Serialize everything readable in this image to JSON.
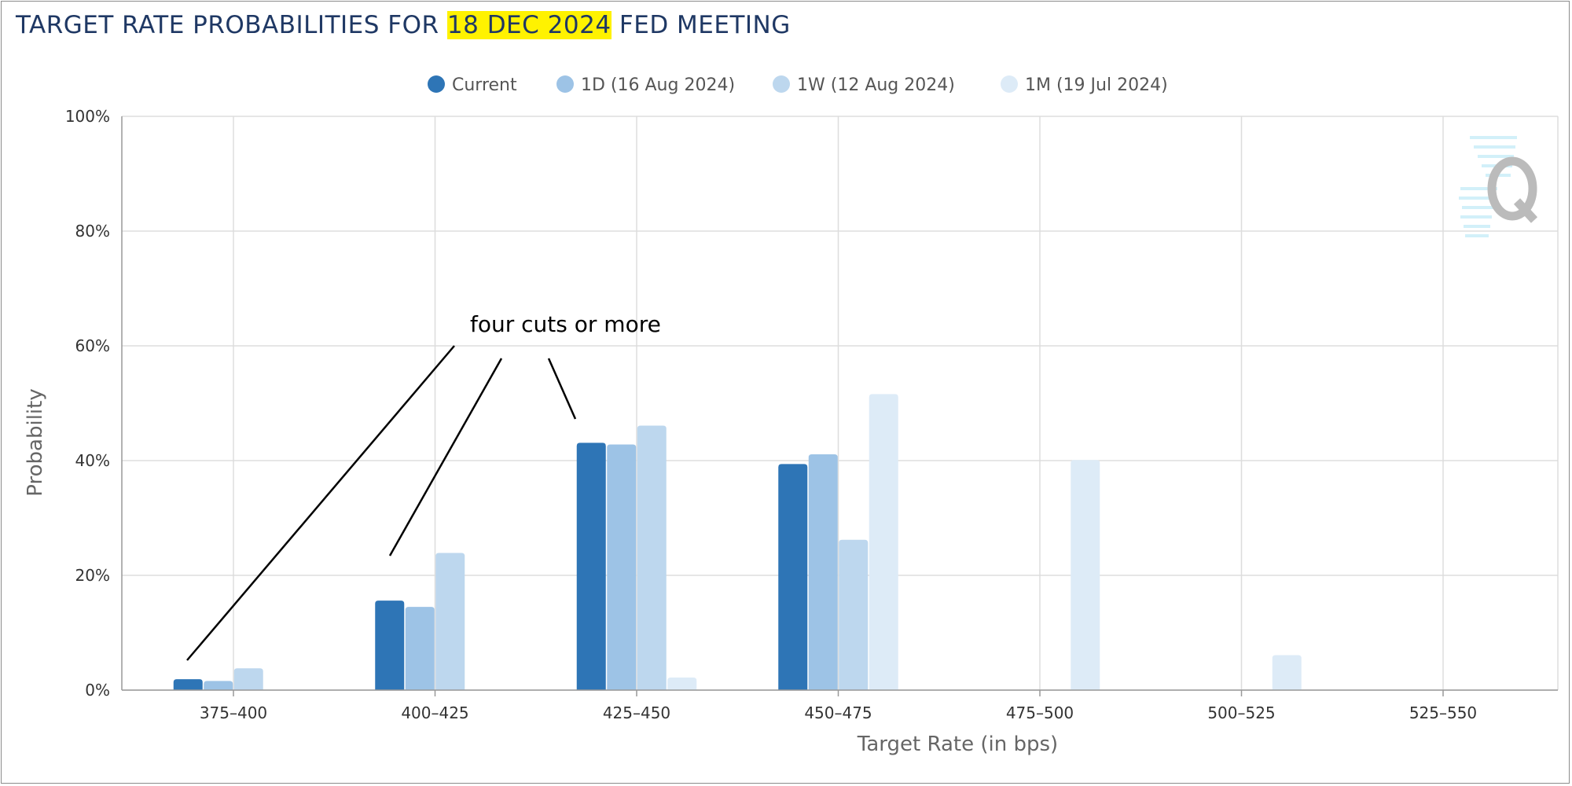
{
  "title": {
    "prefix": "TARGET RATE PROBABILITIES FOR ",
    "highlight": "18 DEC 2024",
    "suffix": " FED MEETING"
  },
  "colors": {
    "title": "#1f3864",
    "highlight": "#fff200",
    "gridline": "#dddddd",
    "axis": "#999999"
  },
  "chart_data": {
    "type": "bar",
    "categories": [
      "375-400",
      "400-425",
      "425-450",
      "450-475",
      "475-500",
      "500-525",
      "525-550"
    ],
    "series": [
      {
        "name": "Current",
        "color": "#2e75b6",
        "values": [
          1.9,
          15.6,
          43.1,
          39.4,
          0,
          0,
          0
        ]
      },
      {
        "name": "1D (16 Aug 2024)",
        "color": "#9dc3e6",
        "values": [
          1.6,
          14.5,
          42.8,
          41.1,
          0,
          0,
          0
        ]
      },
      {
        "name": "1W (12 Aug 2024)",
        "color": "#bdd7ee",
        "values": [
          3.8,
          23.9,
          46.1,
          26.2,
          0,
          0,
          0
        ]
      },
      {
        "name": "1M (19 Jul 2024)",
        "color": "#ddebf7",
        "values": [
          0,
          0,
          2.2,
          51.6,
          40.1,
          6.1,
          0
        ]
      }
    ],
    "xlabel": "Target Rate (in bps)",
    "ylabel": "Probability",
    "ylim": [
      0,
      100
    ],
    "yticks": [
      "0%",
      "20%",
      "40%",
      "60%",
      "80%",
      "100%"
    ],
    "grid": true,
    "legend": "top-center",
    "annotation": "four cuts or more"
  }
}
